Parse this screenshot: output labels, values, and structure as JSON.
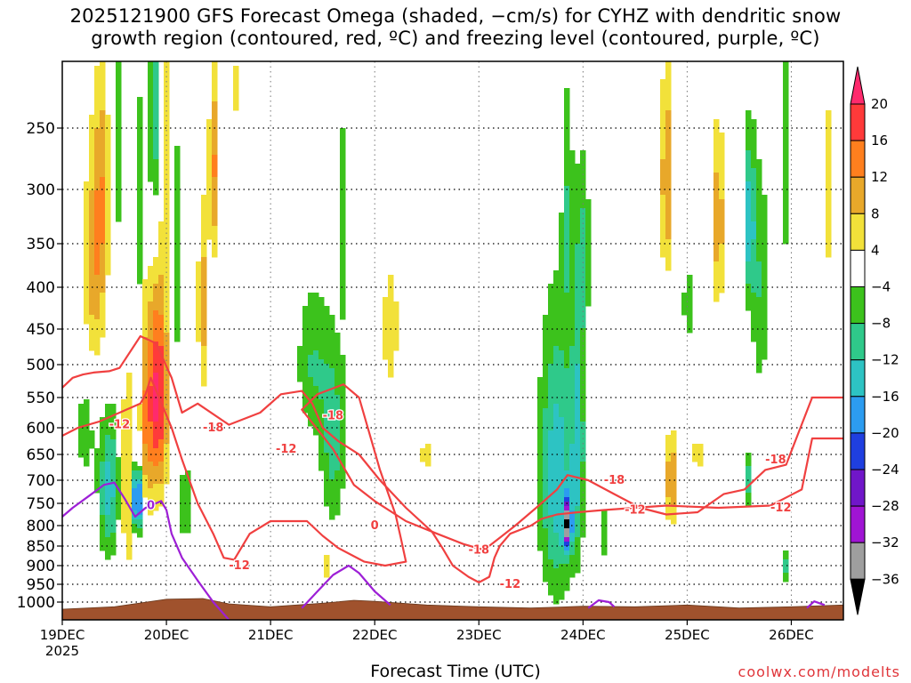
{
  "title": {
    "line1": "2025121900 GFS Forecast Omega (shaded, −cm/s) for CYHZ with dendritic snow",
    "line2": "growth region (contoured, red, ºC) and freezing level (contoured, purple, ºC)"
  },
  "xlabel": "Forecast Time (UTC)",
  "credit": "coolwx.com/modelts",
  "colors": {
    "red_contour": "#f04040",
    "purple_contour": "#9d1fd6",
    "terrain": "#a0522d"
  },
  "chart_data": {
    "type": "heatmap",
    "station": "CYHZ",
    "init": "2025121900",
    "y_axis": {
      "quantity": "pressure (hPa)",
      "ticks": [
        250,
        300,
        350,
        400,
        450,
        500,
        550,
        600,
        650,
        700,
        750,
        800,
        850,
        900,
        950,
        1000
      ],
      "range": [
        200,
        1030
      ]
    },
    "x_axis": {
      "ticks": [
        "19DEC",
        "20DEC",
        "21DEC",
        "22DEC",
        "23DEC",
        "24DEC",
        "25DEC",
        "26DEC"
      ],
      "first_year": "2025",
      "range_days": [
        0,
        7.5
      ]
    },
    "colorbar": {
      "levels": [
        20,
        16,
        12,
        8,
        4,
        -4,
        -8,
        -12,
        -16,
        -20,
        -24,
        -28,
        -32,
        -36
      ],
      "colors": [
        "#ff2a6d",
        "#ff3a3a",
        "#ff7f1e",
        "#e8a82a",
        "#f2e13a",
        "#ffffff",
        "#3cc21c",
        "#2fc98a",
        "#2dc3c3",
        "#2c9cf0",
        "#1f3fe0",
        "#7016c9",
        "#a014d4",
        "#9e9e9e",
        "#000000"
      ]
    },
    "omega_blobs": [
      {
        "t": 0.3,
        "p": 380,
        "dt": 0.1,
        "dp": 130,
        "v": 10
      },
      {
        "t": 0.38,
        "p": 300,
        "dt": 0.07,
        "dp": 110,
        "v": 9
      },
      {
        "t": 0.22,
        "p": 600,
        "dt": 0.1,
        "dp": 110,
        "v": -6
      },
      {
        "t": 0.45,
        "p": 720,
        "dt": 0.1,
        "dp": 150,
        "v": -14
      },
      {
        "t": 0.55,
        "p": 250,
        "dt": 0.04,
        "dp": 120,
        "v": -7
      },
      {
        "t": 0.72,
        "p": 740,
        "dt": 0.05,
        "dp": 70,
        "v": -28
      },
      {
        "t": 0.62,
        "p": 700,
        "dt": 0.06,
        "dp": 230,
        "v": 9
      },
      {
        "t": 0.73,
        "p": 330,
        "dt": 0.04,
        "dp": 140,
        "v": -8
      },
      {
        "t": 0.88,
        "p": 240,
        "dt": 0.05,
        "dp": 90,
        "v": -12
      },
      {
        "t": 0.92,
        "p": 550,
        "dt": 0.09,
        "dp": 160,
        "v": 22
      },
      {
        "t": 0.8,
        "p": 600,
        "dt": 0.06,
        "dp": 200,
        "v": 10
      },
      {
        "t": 1.0,
        "p": 280,
        "dt": 0.05,
        "dp": 130,
        "v": 6
      },
      {
        "t": 1.1,
        "p": 370,
        "dt": 0.04,
        "dp": 170,
        "v": -6
      },
      {
        "t": 1.18,
        "p": 750,
        "dt": 0.05,
        "dp": 120,
        "v": -7
      },
      {
        "t": 1.35,
        "p": 420,
        "dt": 0.05,
        "dp": 120,
        "v": 10
      },
      {
        "t": 1.45,
        "p": 280,
        "dt": 0.04,
        "dp": 80,
        "v": 13
      },
      {
        "t": 1.65,
        "p": 220,
        "dt": 0.03,
        "dp": 50,
        "v": 6
      },
      {
        "t": 2.4,
        "p": 500,
        "dt": 0.15,
        "dp": 110,
        "v": -8
      },
      {
        "t": 2.6,
        "p": 620,
        "dt": 0.12,
        "dp": 170,
        "v": -10
      },
      {
        "t": 2.7,
        "p": 320,
        "dt": 0.03,
        "dp": 120,
        "v": -6
      },
      {
        "t": 3.15,
        "p": 450,
        "dt": 0.13,
        "dp": 140,
        "v": 5
      },
      {
        "t": 3.5,
        "p": 650,
        "dt": 0.1,
        "dp": 40,
        "v": 5
      },
      {
        "t": 2.55,
        "p": 900,
        "dt": 0.03,
        "dp": 40,
        "v": 8
      },
      {
        "t": 4.75,
        "p": 690,
        "dt": 0.17,
        "dp": 270,
        "v": -15
      },
      {
        "t": 4.85,
        "p": 800,
        "dt": 0.04,
        "dp": 60,
        "v": -28
      },
      {
        "t": 4.95,
        "p": 620,
        "dt": 0.06,
        "dp": 220,
        "v": -12
      },
      {
        "t": 5.0,
        "p": 360,
        "dt": 0.07,
        "dp": 100,
        "v": -8
      },
      {
        "t": 4.85,
        "p": 320,
        "dt": 0.05,
        "dp": 120,
        "v": -7
      },
      {
        "t": 5.2,
        "p": 820,
        "dt": 0.04,
        "dp": 60,
        "v": -8
      },
      {
        "t": 5.85,
        "p": 700,
        "dt": 0.06,
        "dp": 90,
        "v": 13
      },
      {
        "t": 5.8,
        "p": 290,
        "dt": 0.05,
        "dp": 90,
        "v": 13
      },
      {
        "t": 6.3,
        "p": 330,
        "dt": 0.05,
        "dp": 90,
        "v": 12
      },
      {
        "t": 6.0,
        "p": 420,
        "dt": 0.04,
        "dp": 70,
        "v": -7
      },
      {
        "t": 6.6,
        "p": 330,
        "dt": 0.05,
        "dp": 80,
        "v": -15
      },
      {
        "t": 6.7,
        "p": 400,
        "dt": 0.08,
        "dp": 140,
        "v": -8
      },
      {
        "t": 6.6,
        "p": 700,
        "dt": 0.03,
        "dp": 60,
        "v": -12
      },
      {
        "t": 6.95,
        "p": 260,
        "dt": 0.06,
        "dp": 120,
        "v": -7
      },
      {
        "t": 7.35,
        "p": 300,
        "dt": 0.05,
        "dp": 100,
        "v": 6
      },
      {
        "t": 6.95,
        "p": 900,
        "dt": 0.03,
        "dp": 40,
        "v": -10
      },
      {
        "t": 6.1,
        "p": 650,
        "dt": 0.06,
        "dp": 100,
        "v": 5
      }
    ],
    "contours": [
      {
        "level": -12,
        "color": "red",
        "points": [
          [
            0.0,
            535
          ],
          [
            0.1,
            520
          ],
          [
            0.2,
            515
          ],
          [
            0.3,
            512
          ],
          [
            0.45,
            510
          ],
          [
            0.55,
            505
          ],
          [
            0.75,
            460
          ],
          [
            0.9,
            470
          ],
          [
            1.05,
            520
          ],
          [
            1.15,
            575
          ],
          [
            1.3,
            560
          ],
          [
            1.6,
            595
          ],
          [
            1.9,
            575
          ],
          [
            2.1,
            545
          ],
          [
            2.3,
            540
          ],
          [
            2.4,
            560
          ],
          [
            2.5,
            600
          ],
          [
            2.65,
            625
          ],
          [
            2.85,
            650
          ],
          [
            3.05,
            700
          ],
          [
            3.3,
            760
          ],
          [
            3.55,
            815
          ],
          [
            3.65,
            855
          ],
          [
            3.75,
            900
          ],
          [
            3.9,
            930
          ],
          [
            4.0,
            945
          ],
          [
            4.1,
            930
          ],
          [
            4.15,
            880
          ],
          [
            4.2,
            850
          ],
          [
            4.3,
            820
          ],
          [
            4.5,
            800
          ],
          [
            4.6,
            785
          ],
          [
            4.75,
            775
          ],
          [
            4.95,
            770
          ],
          [
            5.2,
            765
          ],
          [
            5.5,
            760
          ],
          [
            5.8,
            755
          ],
          [
            6.3,
            760
          ],
          [
            6.8,
            755
          ],
          [
            7.1,
            720
          ],
          [
            7.2,
            620
          ],
          [
            7.5,
            620
          ]
        ]
      },
      {
        "level": -18,
        "color": "red",
        "points": [
          [
            0.0,
            615
          ],
          [
            0.15,
            600
          ],
          [
            0.35,
            590
          ],
          [
            0.55,
            575
          ],
          [
            0.75,
            560
          ],
          [
            0.8,
            545
          ],
          [
            0.85,
            520
          ],
          [
            1.05,
            600
          ],
          [
            1.15,
            660
          ],
          [
            1.3,
            750
          ],
          [
            1.45,
            820
          ],
          [
            1.55,
            880
          ],
          [
            1.65,
            885
          ],
          [
            1.8,
            820
          ],
          [
            2.0,
            790
          ],
          [
            2.2,
            790
          ],
          [
            2.35,
            790
          ],
          [
            2.5,
            825
          ],
          [
            2.65,
            855
          ],
          [
            2.9,
            890
          ],
          [
            3.1,
            900
          ],
          [
            3.3,
            890
          ],
          [
            3.25,
            830
          ],
          [
            3.2,
            775
          ],
          [
            3.05,
            680
          ],
          [
            2.85,
            550
          ],
          [
            2.7,
            530
          ],
          [
            2.45,
            545
          ],
          [
            2.3,
            570
          ],
          [
            2.6,
            640
          ],
          [
            2.8,
            710
          ],
          [
            3.0,
            745
          ],
          [
            3.3,
            790
          ],
          [
            3.6,
            820
          ],
          [
            3.85,
            845
          ],
          [
            4.05,
            860
          ],
          [
            4.2,
            830
          ],
          [
            4.35,
            800
          ],
          [
            4.55,
            760
          ],
          [
            4.75,
            720
          ],
          [
            4.85,
            690
          ],
          [
            5.05,
            700
          ],
          [
            5.3,
            730
          ],
          [
            5.55,
            760
          ],
          [
            5.8,
            775
          ],
          [
            6.1,
            770
          ],
          [
            6.35,
            730
          ],
          [
            6.55,
            720
          ],
          [
            6.75,
            680
          ],
          [
            6.95,
            670
          ],
          [
            7.2,
            550
          ],
          [
            7.5,
            550
          ]
        ]
      },
      {
        "level": 0,
        "color": "purple",
        "points": [
          [
            0.0,
            780
          ],
          [
            0.1,
            760
          ],
          [
            0.25,
            735
          ],
          [
            0.4,
            710
          ],
          [
            0.5,
            705
          ],
          [
            0.6,
            740
          ],
          [
            0.7,
            780
          ],
          [
            0.8,
            760
          ],
          [
            0.95,
            745
          ],
          [
            1.0,
            765
          ],
          [
            1.05,
            820
          ],
          [
            1.15,
            880
          ],
          [
            1.3,
            940
          ],
          [
            1.45,
            1000
          ],
          [
            1.6,
            1030
          ]
        ]
      },
      {
        "level": 0,
        "color": "purple",
        "points": [
          [
            2.3,
            1010
          ],
          [
            2.45,
            970
          ],
          [
            2.6,
            925
          ],
          [
            2.75,
            900
          ],
          [
            2.85,
            920
          ],
          [
            3.0,
            970
          ],
          [
            3.15,
            1005
          ]
        ]
      },
      {
        "level": 0,
        "color": "purple",
        "points": [
          [
            5.05,
            1010
          ],
          [
            5.15,
            995
          ],
          [
            5.25,
            1000
          ],
          [
            5.3,
            1008
          ]
        ]
      },
      {
        "level": 0,
        "color": "purple",
        "points": [
          [
            7.15,
            1010
          ],
          [
            7.22,
            998
          ],
          [
            7.32,
            1005
          ]
        ]
      }
    ],
    "contour_labels": [
      {
        "t": 0.55,
        "p": 595,
        "text": "-12",
        "color": "red"
      },
      {
        "t": 1.45,
        "p": 600,
        "text": "-18",
        "color": "red"
      },
      {
        "t": 2.15,
        "p": 640,
        "text": "-12",
        "color": "red"
      },
      {
        "t": 1.7,
        "p": 900,
        "text": "-12",
        "color": "red"
      },
      {
        "t": 2.6,
        "p": 580,
        "text": "-18",
        "color": "red"
      },
      {
        "t": 4.0,
        "p": 860,
        "text": "-18",
        "color": "red"
      },
      {
        "t": 4.3,
        "p": 950,
        "text": "-12",
        "color": "red"
      },
      {
        "t": 5.3,
        "p": 700,
        "text": "-18",
        "color": "red"
      },
      {
        "t": 5.5,
        "p": 765,
        "text": "-12",
        "color": "red"
      },
      {
        "t": 6.85,
        "p": 660,
        "text": "-18",
        "color": "red"
      },
      {
        "t": 6.9,
        "p": 760,
        "text": "-12",
        "color": "red"
      },
      {
        "t": 3.0,
        "p": 800,
        "text": "0",
        "color": "red"
      },
      {
        "t": 0.85,
        "p": 755,
        "text": "0",
        "color": "purple"
      }
    ],
    "terrain": [
      [
        0.0,
        1012
      ],
      [
        0.5,
        1008
      ],
      [
        1.0,
        992
      ],
      [
        1.35,
        990
      ],
      [
        1.6,
        1003
      ],
      [
        2.0,
        1008
      ],
      [
        2.5,
        1002
      ],
      [
        2.8,
        995
      ],
      [
        3.0,
        998
      ],
      [
        3.5,
        1005
      ],
      [
        4.0,
        1008
      ],
      [
        4.5,
        1010
      ],
      [
        5.0,
        1007
      ],
      [
        5.5,
        1008
      ],
      [
        6.0,
        1005
      ],
      [
        6.5,
        1010
      ],
      [
        7.0,
        1008
      ],
      [
        7.5,
        1005
      ]
    ]
  }
}
